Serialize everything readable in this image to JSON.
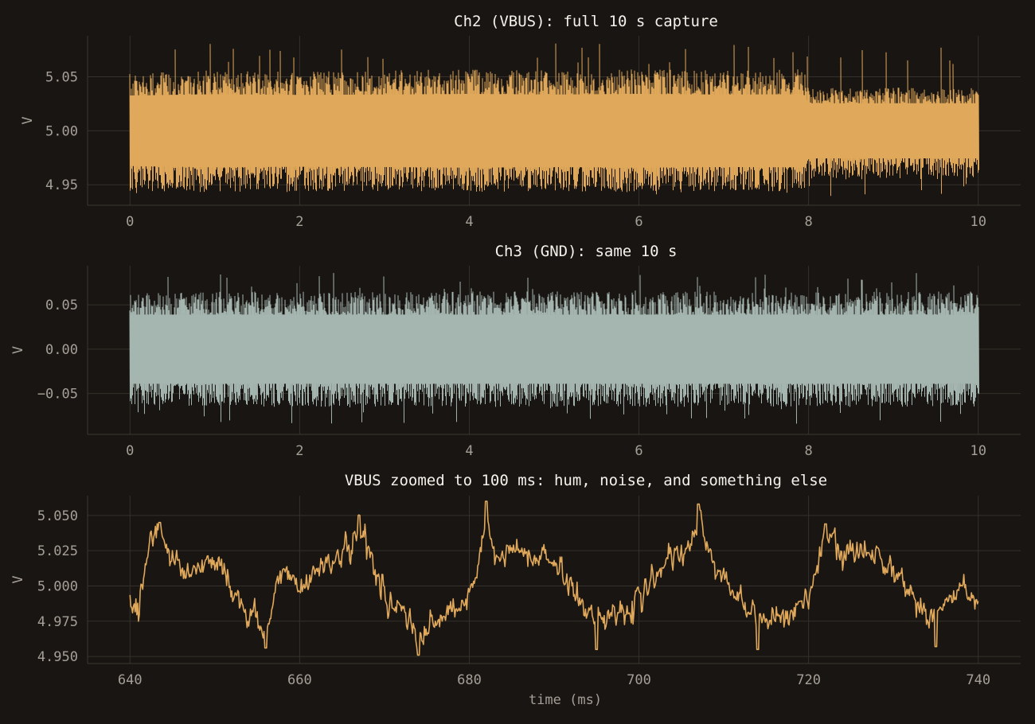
{
  "chart_data": [
    {
      "type": "line",
      "title": "Ch2 (VBUS): full 10 s capture",
      "xlabel": "",
      "ylabel": "V",
      "xlim": [
        -0.5,
        10.5
      ],
      "ylim": [
        4.931,
        5.088
      ],
      "x_ticks": [
        "0",
        "2",
        "4",
        "6",
        "8",
        "10"
      ],
      "y_ticks": [
        "4.95",
        "5.00",
        "5.05"
      ],
      "color": "#e0a85a",
      "grid": true,
      "series": [
        {
          "x_range": [
            0,
            10
          ],
          "signal": {
            "center": 5.0,
            "hum_amplitude": 0.019,
            "noise_amplitude": 0.01,
            "envelope": [
              [
                0,
                5.053,
                4.944
              ],
              [
                1,
                5.056,
                4.943
              ],
              [
                2,
                5.055,
                4.944
              ],
              [
                3,
                5.056,
                4.944
              ],
              [
                4,
                5.057,
                4.943
              ],
              [
                5,
                5.056,
                4.944
              ],
              [
                6,
                5.057,
                4.943
              ],
              [
                7,
                5.056,
                4.944
              ],
              [
                7.95,
                5.057,
                4.944
              ],
              [
                8.0,
                5.04,
                4.955
              ],
              [
                9,
                5.04,
                4.955
              ],
              [
                10,
                5.04,
                4.955
              ]
            ],
            "spike_max": 5.082,
            "spike_min": 4.939
          }
        }
      ]
    },
    {
      "type": "line",
      "title": "Ch3 (GND): same 10 s",
      "xlabel": "",
      "ylabel": "V",
      "xlim": [
        -0.5,
        10.5
      ],
      "ylim": [
        -0.096,
        0.094
      ],
      "x_ticks": [
        "0",
        "2",
        "4",
        "6",
        "8",
        "10"
      ],
      "y_ticks": [
        "−0.05",
        "0.00",
        "0.05"
      ],
      "color": "#a5b5af",
      "grid": true,
      "series": [
        {
          "x_range": [
            0,
            10
          ],
          "signal": {
            "center": 0.0,
            "envelope": [
              [
                0,
                0.065,
                -0.065
              ],
              [
                10,
                0.065,
                -0.065
              ]
            ],
            "spike_max": 0.086,
            "spike_min": -0.084
          }
        }
      ]
    },
    {
      "type": "line",
      "title": "VBUS zoomed to 100 ms: hum, noise, and something else",
      "xlabel": "time (ms)",
      "ylabel": "V",
      "xlim": [
        635,
        745
      ],
      "ylim": [
        4.945,
        5.064
      ],
      "x_ticks": [
        "640",
        "660",
        "680",
        "700",
        "720",
        "740"
      ],
      "y_ticks": [
        "4.950",
        "4.975",
        "5.000",
        "5.025",
        "5.050"
      ],
      "color": "#e0a85a",
      "grid": true,
      "series": [
        {
          "x_range": [
            640,
            740
          ],
          "signal": {
            "hum_period_ms": 20,
            "hum_amplitude": 0.018,
            "noise_amplitude": 0.01,
            "keypoints": [
              [
                640,
                4.99
              ],
              [
                641,
                4.985
              ],
              [
                642.5,
                5.035
              ],
              [
                643.5,
                5.042
              ],
              [
                645,
                5.02
              ],
              [
                647,
                5.008
              ],
              [
                649,
                5.02
              ],
              [
                651,
                5.012
              ],
              [
                653,
                4.985
              ],
              [
                655,
                4.975
              ],
              [
                656,
                4.965
              ],
              [
                657,
                4.99
              ],
              [
                658,
                5.012
              ],
              [
                660,
                5.0
              ],
              [
                662,
                5.012
              ],
              [
                664,
                5.02
              ],
              [
                666,
                5.025
              ],
              [
                667,
                5.045
              ],
              [
                668,
                5.03
              ],
              [
                670,
                4.99
              ],
              [
                672,
                4.985
              ],
              [
                674,
                4.96
              ],
              [
                676,
                4.975
              ],
              [
                678,
                4.98
              ],
              [
                680,
                4.99
              ],
              [
                681,
                5.01
              ],
              [
                682,
                5.05
              ],
              [
                683,
                5.02
              ],
              [
                685,
                5.025
              ],
              [
                687,
                5.022
              ],
              [
                689,
                5.02
              ],
              [
                691,
                5.01
              ],
              [
                693,
                4.99
              ],
              [
                695,
                4.975
              ],
              [
                697,
                4.985
              ],
              [
                699,
                4.98
              ],
              [
                700,
                4.99
              ],
              [
                702,
                5.01
              ],
              [
                704,
                5.018
              ],
              [
                706,
                5.025
              ],
              [
                707,
                5.048
              ],
              [
                708,
                5.03
              ],
              [
                709,
                5.015
              ],
              [
                711,
                4.995
              ],
              [
                713,
                4.985
              ],
              [
                715,
                4.975
              ],
              [
                717,
                4.98
              ],
              [
                719,
                4.985
              ],
              [
                720,
                4.99
              ],
              [
                721,
                5.012
              ],
              [
                722,
                5.038
              ],
              [
                724,
                5.02
              ],
              [
                726,
                5.025
              ],
              [
                728,
                5.025
              ],
              [
                730,
                5.012
              ],
              [
                732,
                4.995
              ],
              [
                734,
                4.98
              ],
              [
                736,
                4.985
              ],
              [
                738,
                5.0
              ],
              [
                740,
                4.985
              ]
            ],
            "peaks": [
              [
                643.5,
                5.045
              ],
              [
                667,
                5.05
              ],
              [
                682,
                5.06
              ],
              [
                707,
                5.058
              ],
              [
                722,
                5.044
              ]
            ],
            "troughs": [
              [
                656,
                4.956
              ],
              [
                674,
                4.951
              ],
              [
                695,
                4.955
              ],
              [
                714,
                4.955
              ],
              [
                735,
                4.957
              ]
            ]
          }
        }
      ]
    }
  ]
}
